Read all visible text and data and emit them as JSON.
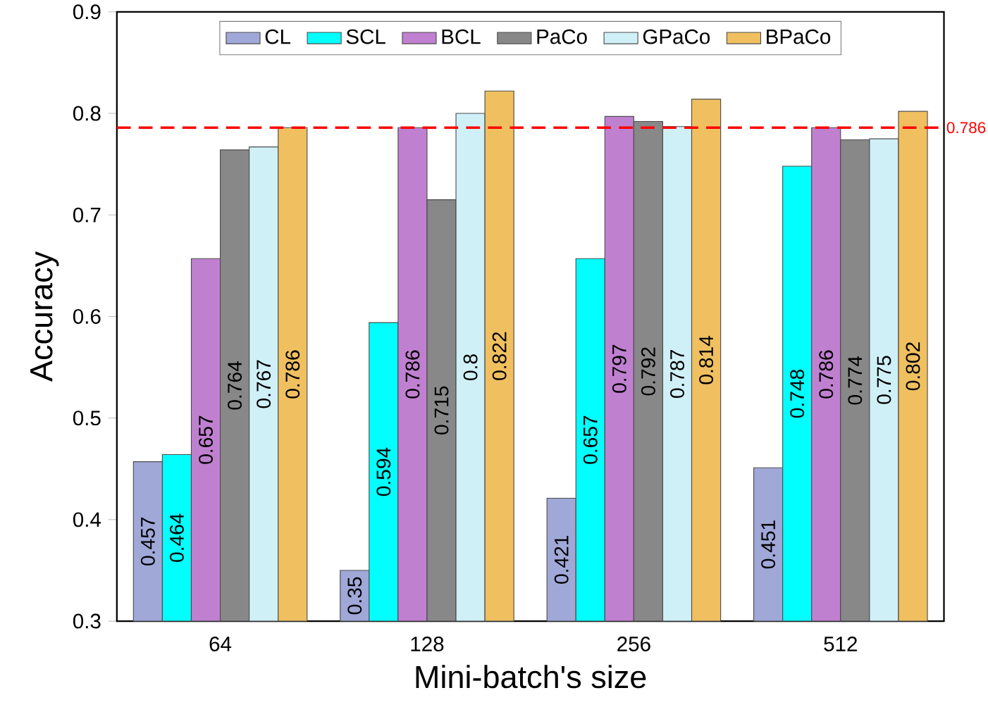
{
  "chart_data": {
    "type": "bar",
    "xlabel": "Mini-batch's size",
    "ylabel": "Accuracy",
    "categories": [
      "64",
      "128",
      "256",
      "512"
    ],
    "series": [
      {
        "name": "CL",
        "color": "#a0a8d8",
        "values": [
          0.457,
          0.35,
          0.421,
          0.451
        ],
        "value_labels": [
          "0.457",
          "0.35",
          "0.421",
          "0.451"
        ]
      },
      {
        "name": "SCL",
        "color": "#00ffff",
        "values": [
          0.464,
          0.594,
          0.657,
          0.748
        ],
        "value_labels": [
          "0.464",
          "0.594",
          "0.657",
          "0.748"
        ]
      },
      {
        "name": "BCL",
        "color": "#c080d0",
        "values": [
          0.657,
          0.786,
          0.797,
          0.786
        ],
        "value_labels": [
          "0.657",
          "0.786",
          "0.797",
          "0.786"
        ]
      },
      {
        "name": "PaCo",
        "color": "#888888",
        "values": [
          0.764,
          0.715,
          0.792,
          0.774
        ],
        "value_labels": [
          "0.764",
          "0.715",
          "0.792",
          "0.774"
        ]
      },
      {
        "name": "GPaCo",
        "color": "#d0f0f8",
        "values": [
          0.767,
          0.8,
          0.787,
          0.775
        ],
        "value_labels": [
          "0.767",
          "0.8",
          "0.787",
          "0.775"
        ]
      },
      {
        "name": "BPaCo",
        "color": "#f0c060",
        "values": [
          0.786,
          0.822,
          0.814,
          0.802
        ],
        "value_labels": [
          "0.786",
          "0.822",
          "0.814",
          "0.802"
        ]
      }
    ],
    "ylim": [
      0.3,
      0.9
    ],
    "yticks": [
      0.3,
      0.4,
      0.5,
      0.6,
      0.7,
      0.8,
      0.9
    ],
    "ref_lines": [
      {
        "axis": "y",
        "value": 0.786,
        "label": "0.786",
        "color": "#ff0000",
        "line_style": "dashed"
      }
    ],
    "legend": "top",
    "grid": false
  }
}
